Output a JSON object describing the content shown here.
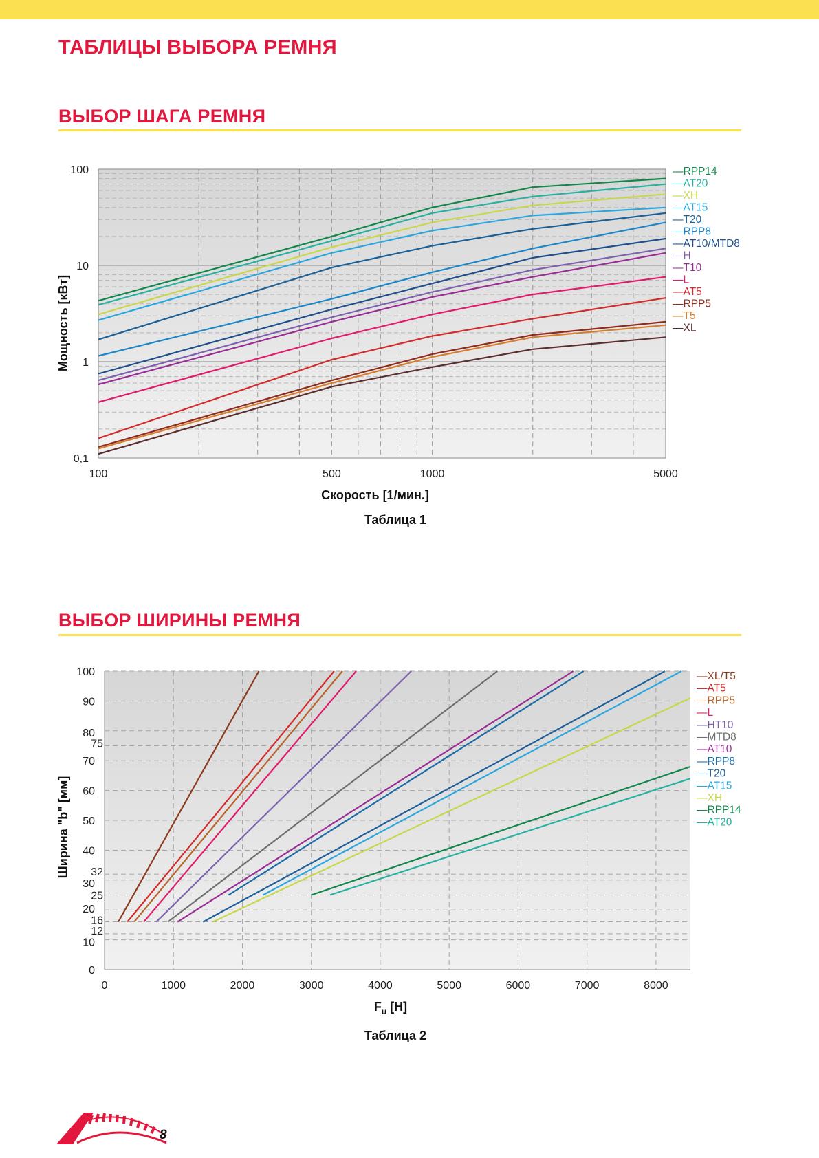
{
  "page": {
    "title": "ТАБЛИЦЫ ВЫБОРА РЕМНЯ",
    "section1_title": "ВЫБОР ШАГА РЕМНЯ",
    "section2_title": "ВЫБОР ШИРИНЫ РЕМНЯ",
    "caption1": "Таблица 1",
    "caption2": "Таблица 2",
    "page_number": "8",
    "accent_color": "#e3173e",
    "band_color": "#fbe14f"
  },
  "chart_data": [
    {
      "type": "line",
      "xscale": "log",
      "yscale": "log",
      "xlabel": "Скорость [1/мин.]",
      "ylabel": "Мощность [кВт]",
      "xlim": [
        100,
        5000
      ],
      "ylim": [
        0.1,
        100
      ],
      "xticks": [
        100,
        500,
        1000,
        5000
      ],
      "xtick_labels": [
        "100",
        "500",
        "1000",
        "5000"
      ],
      "yticks": [
        0.1,
        1,
        10,
        100
      ],
      "ytick_labels": [
        "0,1",
        "1",
        "10",
        "100"
      ],
      "grid": true,
      "legend_position": "right",
      "series": [
        {
          "name": "RPP14",
          "color": "#12874a",
          "x": [
            100,
            500,
            1000,
            2000,
            5000
          ],
          "y": [
            4.3,
            20,
            40,
            65,
            80
          ]
        },
        {
          "name": "AT20",
          "color": "#27b1a0",
          "x": [
            100,
            500,
            1000,
            2000,
            5000
          ],
          "y": [
            3.9,
            18,
            35,
            52,
            70
          ]
        },
        {
          "name": "XH",
          "color": "#c9d74a",
          "x": [
            100,
            500,
            1000,
            2000,
            5000
          ],
          "y": [
            3.1,
            15.5,
            28,
            42,
            55
          ]
        },
        {
          "name": "AT15",
          "color": "#2aa7df",
          "x": [
            100,
            500,
            1000,
            2000,
            5000
          ],
          "y": [
            2.7,
            13.5,
            23,
            33,
            40
          ]
        },
        {
          "name": "T20",
          "color": "#1a5f96",
          "x": [
            100,
            500,
            1000,
            2000,
            5000
          ],
          "y": [
            1.7,
            9.5,
            16,
            24,
            35
          ]
        },
        {
          "name": "RPP8",
          "color": "#1b87c8",
          "x": [
            100,
            500,
            1000,
            2000,
            5000
          ],
          "y": [
            1.15,
            4.5,
            8.5,
            15,
            28
          ]
        },
        {
          "name": "AT10/MTD8",
          "color": "#1d4f8c",
          "x": [
            100,
            500,
            1000,
            2000,
            5000
          ],
          "y": [
            0.75,
            3.5,
            6.5,
            12,
            19
          ]
        },
        {
          "name": "H",
          "color": "#7e62b0",
          "x": [
            100,
            500,
            1000,
            2000,
            5000
          ],
          "y": [
            0.64,
            2.9,
            5.3,
            9,
            15
          ]
        },
        {
          "name": "T10",
          "color": "#9a2d95",
          "x": [
            100,
            500,
            1000,
            2000,
            5000
          ],
          "y": [
            0.58,
            2.6,
            4.7,
            7.6,
            13.5
          ]
        },
        {
          "name": "L",
          "color": "#e11b6d",
          "x": [
            100,
            500,
            1000,
            2000,
            5000
          ],
          "y": [
            0.38,
            1.75,
            3.1,
            5,
            7.6
          ]
        },
        {
          "name": "AT5",
          "color": "#d42a2a",
          "x": [
            100,
            500,
            1000,
            2000,
            5000
          ],
          "y": [
            0.16,
            1.05,
            1.85,
            2.8,
            4.6
          ]
        },
        {
          "name": "RPP5",
          "color": "#8f2a1e",
          "x": [
            100,
            500,
            1000,
            2000,
            5000
          ],
          "y": [
            0.13,
            0.64,
            1.2,
            1.9,
            2.6
          ]
        },
        {
          "name": "T5",
          "color": "#d77d2e",
          "x": [
            100,
            500,
            1000,
            2000,
            5000
          ],
          "y": [
            0.125,
            0.6,
            1.12,
            1.8,
            2.4
          ]
        },
        {
          "name": "XL",
          "color": "#5c2d2d",
          "x": [
            100,
            500,
            1000,
            2000,
            5000
          ],
          "y": [
            0.11,
            0.55,
            0.88,
            1.35,
            1.8
          ]
        }
      ]
    },
    {
      "type": "line",
      "xlabel": "Fu [H]",
      "xlabel_main": "F",
      "xlabel_sub": "u",
      "xlabel_unit": "[H]",
      "ylabel": "Ширина \"b\" [мм]",
      "xlim": [
        0,
        8500
      ],
      "ylim": [
        0,
        100
      ],
      "xticks": [
        0,
        1000,
        2000,
        3000,
        4000,
        5000,
        6000,
        7000,
        8000
      ],
      "xtick_labels": [
        "0",
        "1000",
        "2000",
        "3000",
        "4000",
        "5000",
        "6000",
        "7000",
        "8000"
      ],
      "yticks": [
        0,
        10,
        12,
        16,
        20,
        25,
        30,
        32,
        40,
        50,
        60,
        70,
        75,
        80,
        90,
        100
      ],
      "ytick_labels": [
        "0",
        "10",
        "12",
        "16",
        "20",
        "25",
        "30",
        "32",
        "40",
        "50",
        "60",
        "70",
        "75",
        "80",
        "90",
        "100"
      ],
      "grid": true,
      "legend_position": "right",
      "series": [
        {
          "name": "XL/T5",
          "color": "#8b3a1d",
          "x": [
            200,
            2240
          ],
          "y": [
            16,
            100
          ]
        },
        {
          "name": "AT5",
          "color": "#d42a2a",
          "x": [
            330,
            3330
          ],
          "y": [
            16,
            100
          ]
        },
        {
          "name": "RPP5",
          "color": "#b8642a",
          "x": [
            430,
            3450
          ],
          "y": [
            16,
            100
          ]
        },
        {
          "name": "L",
          "color": "#e11b6d",
          "x": [
            570,
            3650
          ],
          "y": [
            16,
            100
          ]
        },
        {
          "name": "HT10",
          "color": "#7e62b0",
          "x": [
            750,
            4450
          ],
          "y": [
            16,
            100
          ]
        },
        {
          "name": "MTD8",
          "color": "#6e6e6e",
          "x": [
            920,
            5700
          ],
          "y": [
            16,
            100
          ]
        },
        {
          "name": "AT10",
          "color": "#9a2d95",
          "x": [
            1060,
            6800
          ],
          "y": [
            16,
            100
          ]
        },
        {
          "name": "RPP8",
          "color": "#1a6aa8",
          "x": [
            1800,
            6950
          ],
          "y": [
            25,
            100
          ]
        },
        {
          "name": "T20",
          "color": "#1d5f9a",
          "x": [
            1430,
            8130
          ],
          "y": [
            16,
            100
          ]
        },
        {
          "name": "AT15",
          "color": "#2aa7df",
          "x": [
            2300,
            8370
          ],
          "y": [
            25,
            100
          ]
        },
        {
          "name": "XH",
          "color": "#c9d74a",
          "x": [
            1570,
            8500
          ],
          "y": [
            16,
            91
          ]
        },
        {
          "name": "RPP14",
          "color": "#12874a",
          "x": [
            3000,
            8500
          ],
          "y": [
            25,
            68
          ]
        },
        {
          "name": "AT20",
          "color": "#27b1a0",
          "x": [
            3270,
            8500
          ],
          "y": [
            25,
            64
          ]
        }
      ]
    }
  ]
}
